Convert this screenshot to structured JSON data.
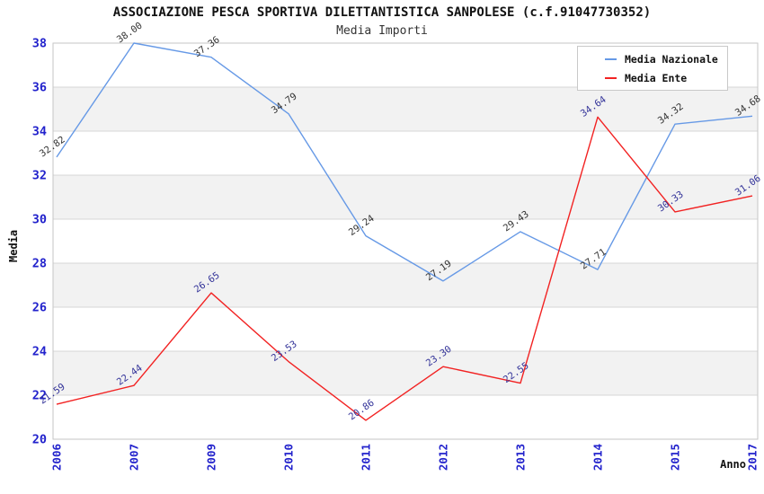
{
  "header": {
    "title": "ASSOCIAZIONE PESCA SPORTIVA DILETTANTISTICA SANPOLESE (c.f.91047730352)",
    "subtitle": "Media Importi"
  },
  "chart_data": {
    "type": "line",
    "title": "ASSOCIAZIONE PESCA SPORTIVA DILETTANTISTICA SANPOLESE (c.f.91047730352)",
    "subtitle": "Media Importi",
    "xlabel": "Anno",
    "ylabel": "Media",
    "categories": [
      "2006",
      "2007",
      "2009",
      "2010",
      "2011",
      "2012",
      "2013",
      "2014",
      "2015",
      "2017"
    ],
    "series": [
      {
        "name": "Media Nazionale",
        "color": "#6699e6",
        "label_color": "#333333",
        "values": [
          32.82,
          38.0,
          37.36,
          34.79,
          29.24,
          27.19,
          29.43,
          27.71,
          34.32,
          34.68
        ]
      },
      {
        "name": "Media Ente",
        "color": "#f22222",
        "label_color": "#333399",
        "values": [
          21.59,
          22.44,
          26.65,
          23.53,
          20.86,
          23.3,
          22.55,
          34.64,
          30.33,
          31.06
        ]
      }
    ],
    "ylim": [
      20,
      38
    ],
    "ytick_step": 2,
    "y_ticks": [
      20,
      22,
      24,
      26,
      28,
      30,
      32,
      34,
      36,
      38
    ],
    "point_label_decimals": 2,
    "grid": "horizontal",
    "plot_bands": {
      "band_fill": "#f2f2f2",
      "alt_fill": "#ffffff"
    },
    "gridline_color": "#d7d7d7",
    "plot_border_color": "#c6c6c6",
    "tick_label_color": "#2222cc",
    "legend_position": "top-right"
  }
}
